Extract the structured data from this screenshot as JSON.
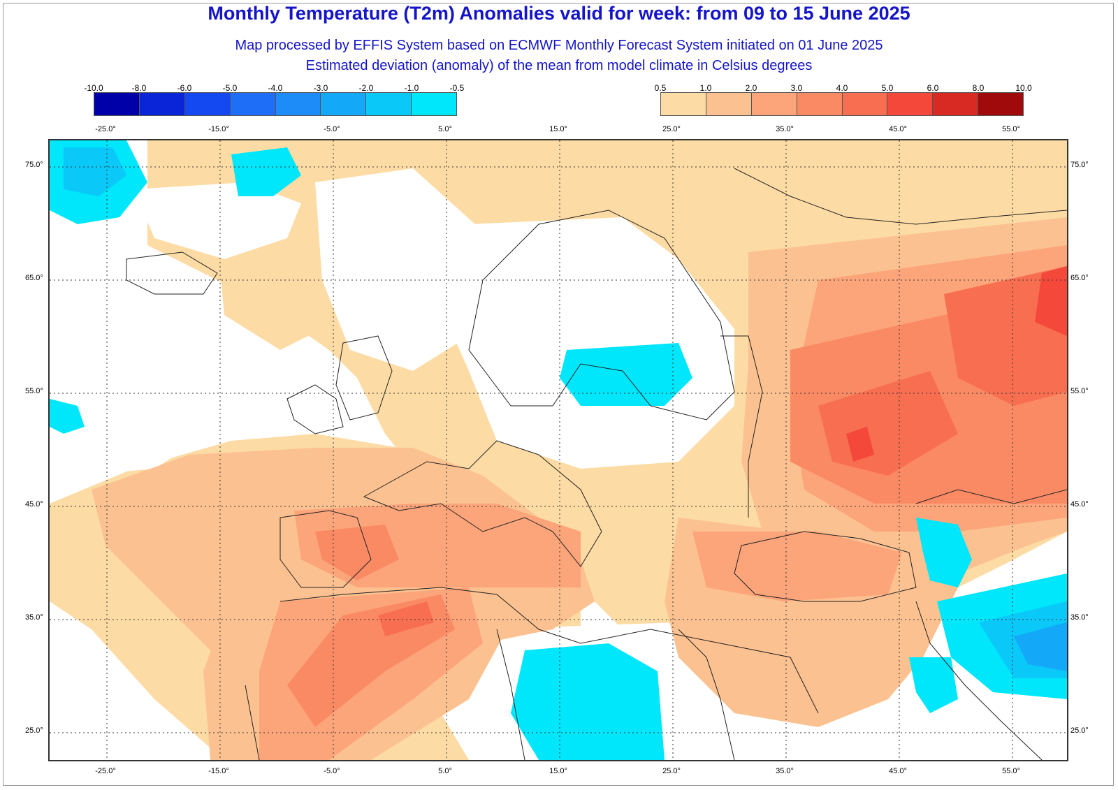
{
  "title": "Monthly Temperature (T2m) Anomalies valid for week: from 09 to 15 June 2025",
  "subtitle1": "Map processed by EFFIS System based on ECMWF Monthly Forecast System initiated on 01 June 2025",
  "subtitle2": "Estimated deviation (anomaly) of the mean from model climate in Celsius degrees",
  "legend_cold": {
    "labels": [
      "-10.0",
      "-8.0",
      "-6.0",
      "-5.0",
      "-4.0",
      "-3.0",
      "-2.0",
      "-1.0",
      "-0.5"
    ],
    "colors": [
      "#0000a8",
      "#0a24d8",
      "#1448f0",
      "#1e6ef8",
      "#1e8cf8",
      "#14a8f8",
      "#0ac8f8",
      "#00e6fa"
    ]
  },
  "legend_warm": {
    "labels": [
      "0.5",
      "1.0",
      "2.0",
      "3.0",
      "4.0",
      "5.0",
      "6.0",
      "8.0",
      "10.0"
    ],
    "colors": [
      "#fddba4",
      "#fcc190",
      "#fca47a",
      "#fa8a64",
      "#f86e50",
      "#f4483a",
      "#d82a22",
      "#a00a0a"
    ]
  },
  "lon_labels": [
    "-25.0°",
    "-15.0°",
    "-5.0°",
    "5.0°",
    "15.0°",
    "25.0°",
    "35.0°",
    "45.0°",
    "55.0°"
  ],
  "lat_labels": [
    "75.0°",
    "65.0°",
    "55.0°",
    "45.0°",
    "35.0°",
    "25.0°"
  ],
  "colors": {
    "title": "#1414c8",
    "anom_0_5": "#fddba4",
    "anom_1": "#fcc190",
    "anom_2": "#fca47a",
    "anom_3": "#fa8a64",
    "anom_4": "#f86e50",
    "anom_5": "#f4483a",
    "cold_0_5": "#00e6fa",
    "cold_1": "#0ac8f8",
    "cold_2": "#14a8f8"
  }
}
